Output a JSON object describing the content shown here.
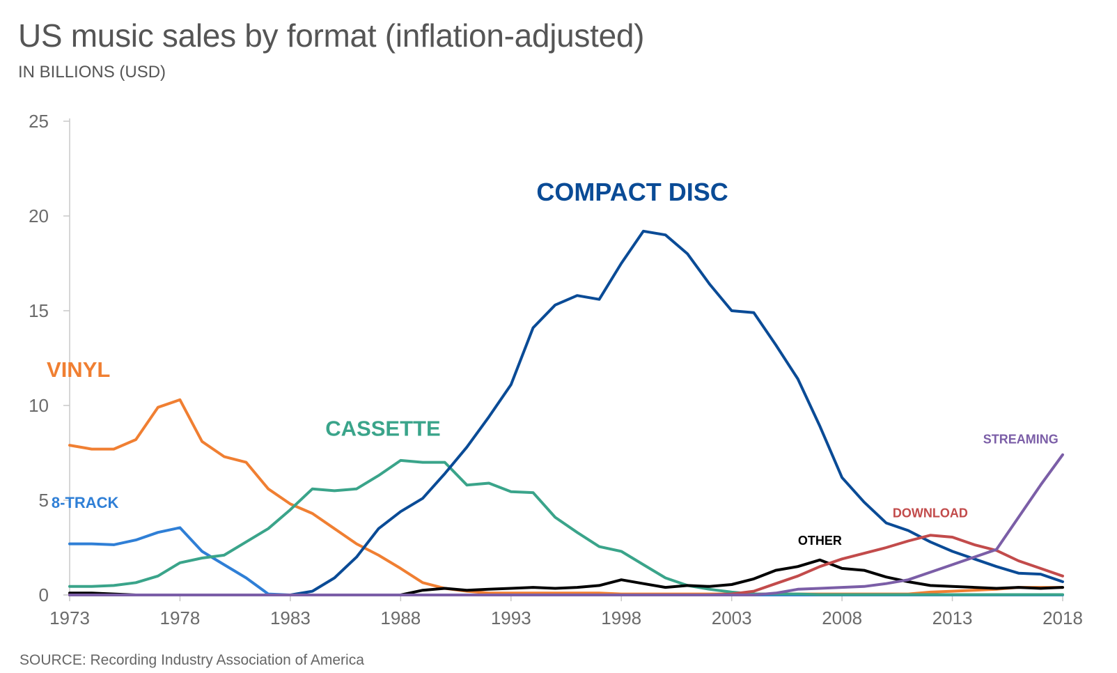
{
  "title": "US music sales by format (inflation-adjusted)",
  "subtitle": "IN BILLIONS (USD)",
  "source": "SOURCE: Recording Industry Association of America",
  "chart_data": {
    "type": "line",
    "title": "US music sales by format (inflation-adjusted)",
    "subtitle": "IN BILLIONS (USD)",
    "xlabel": "",
    "ylabel": "",
    "ylim": [
      0,
      25
    ],
    "xlim": [
      1973,
      2018
    ],
    "x_ticks": [
      1973,
      1978,
      1983,
      1988,
      1993,
      1998,
      2003,
      2008,
      2013,
      2018
    ],
    "y_ticks": [
      0,
      5,
      10,
      15,
      20,
      25
    ],
    "grid": false,
    "legend": "inline labels",
    "x": [
      1973,
      1974,
      1975,
      1976,
      1977,
      1978,
      1979,
      1980,
      1981,
      1982,
      1983,
      1984,
      1985,
      1986,
      1987,
      1988,
      1989,
      1990,
      1991,
      1992,
      1993,
      1994,
      1995,
      1996,
      1997,
      1998,
      1999,
      2000,
      2001,
      2002,
      2003,
      2004,
      2005,
      2006,
      2007,
      2008,
      2009,
      2010,
      2011,
      2012,
      2013,
      2014,
      2015,
      2016,
      2017,
      2018
    ],
    "series": [
      {
        "name": "VINYL",
        "color": "#f07f32",
        "values": [
          7.9,
          7.7,
          7.7,
          8.2,
          9.9,
          10.3,
          8.1,
          7.3,
          7.0,
          5.6,
          4.8,
          4.3,
          3.5,
          2.7,
          2.1,
          1.4,
          0.65,
          0.35,
          0.2,
          0.1,
          0.1,
          0.1,
          0.1,
          0.1,
          0.1,
          0.05,
          0.05,
          0.05,
          0.05,
          0.05,
          0.05,
          0.05,
          0.05,
          0.05,
          0.05,
          0.05,
          0.05,
          0.05,
          0.05,
          0.15,
          0.2,
          0.25,
          0.3,
          0.4,
          0.4,
          0.4
        ],
        "label_x": 1973.4,
        "label_y": 11.5
      },
      {
        "name": "8-TRACK",
        "color": "#2f7fd6",
        "values": [
          2.7,
          2.7,
          2.65,
          2.9,
          3.3,
          3.55,
          2.3,
          1.6,
          0.9,
          0.05,
          0,
          0,
          0,
          0,
          0,
          0,
          0,
          0,
          0,
          0,
          0,
          0,
          0,
          0,
          0,
          0,
          0,
          0,
          0,
          0,
          0,
          0,
          0,
          0,
          0,
          0,
          0,
          0,
          0,
          0,
          0,
          0,
          0,
          0,
          0,
          0
        ],
        "label_x": 1973.7,
        "label_y": 4.6
      },
      {
        "name": "CASSETTE",
        "color": "#3aa48a",
        "values": [
          0.45,
          0.45,
          0.5,
          0.65,
          1.0,
          1.7,
          1.95,
          2.1,
          2.8,
          3.5,
          4.5,
          5.6,
          5.5,
          5.6,
          6.3,
          7.1,
          7.0,
          7.0,
          5.8,
          5.9,
          5.45,
          5.4,
          4.1,
          3.3,
          2.55,
          2.3,
          1.6,
          0.9,
          0.5,
          0.3,
          0.15,
          0.05,
          0.05,
          0.05,
          0.02,
          0.02,
          0.02,
          0.02,
          0.02,
          0.02,
          0.02,
          0.02,
          0.02,
          0.02,
          0.02,
          0.02
        ],
        "label_x": 1987.2,
        "label_y": 8.4
      },
      {
        "name": "COMPACT DISC",
        "color": "#0a4b96",
        "values": [
          0,
          0,
          0,
          0,
          0,
          0,
          0,
          0,
          0,
          0,
          0,
          0.2,
          0.9,
          2.0,
          3.5,
          4.4,
          5.1,
          6.4,
          7.8,
          9.4,
          11.1,
          14.1,
          15.3,
          15.8,
          15.6,
          17.5,
          19.2,
          19.0,
          18.0,
          16.4,
          15.0,
          14.9,
          13.2,
          11.4,
          8.9,
          6.2,
          4.9,
          3.8,
          3.4,
          2.8,
          2.3,
          1.9,
          1.5,
          1.15,
          1.1,
          0.7
        ],
        "label_x": 1998.5,
        "label_y": 20.8
      },
      {
        "name": "OTHER",
        "color": "#000000",
        "values": [
          0.1,
          0.1,
          0.05,
          0,
          0,
          0,
          0,
          0,
          0,
          0,
          0,
          0,
          0,
          0,
          0,
          0,
          0.25,
          0.35,
          0.25,
          0.3,
          0.35,
          0.4,
          0.35,
          0.4,
          0.5,
          0.8,
          0.6,
          0.4,
          0.5,
          0.45,
          0.55,
          0.85,
          1.3,
          1.5,
          1.85,
          1.4,
          1.3,
          0.95,
          0.7,
          0.5,
          0.45,
          0.4,
          0.35,
          0.4,
          0.35,
          0.4
        ],
        "label_x": 2007.0,
        "label_y": 2.65
      },
      {
        "name": "DOWNLOAD",
        "color": "#c24b4b",
        "values": [
          0,
          0,
          0,
          0,
          0,
          0,
          0,
          0,
          0,
          0,
          0,
          0,
          0,
          0,
          0,
          0,
          0,
          0,
          0,
          0,
          0,
          0,
          0,
          0,
          0,
          0,
          0,
          0,
          0,
          0,
          0.05,
          0.2,
          0.6,
          1.0,
          1.5,
          1.9,
          2.2,
          2.5,
          2.85,
          3.15,
          3.05,
          2.65,
          2.35,
          1.8,
          1.4,
          1.0
        ],
        "label_x": 2012.0,
        "label_y": 4.1
      },
      {
        "name": "STREAMING",
        "color": "#7b5ea7",
        "values": [
          0,
          0,
          0,
          0,
          0,
          0,
          0,
          0,
          0,
          0,
          0,
          0,
          0,
          0,
          0,
          0,
          0,
          0,
          0,
          0,
          0,
          0,
          0,
          0,
          0,
          0,
          0,
          0,
          0,
          0,
          0,
          0,
          0.1,
          0.3,
          0.35,
          0.4,
          0.45,
          0.6,
          0.8,
          1.2,
          1.6,
          2.0,
          2.4,
          4.1,
          5.8,
          7.4
        ],
        "label_x": 2016.1,
        "label_y": 8.0
      }
    ]
  }
}
